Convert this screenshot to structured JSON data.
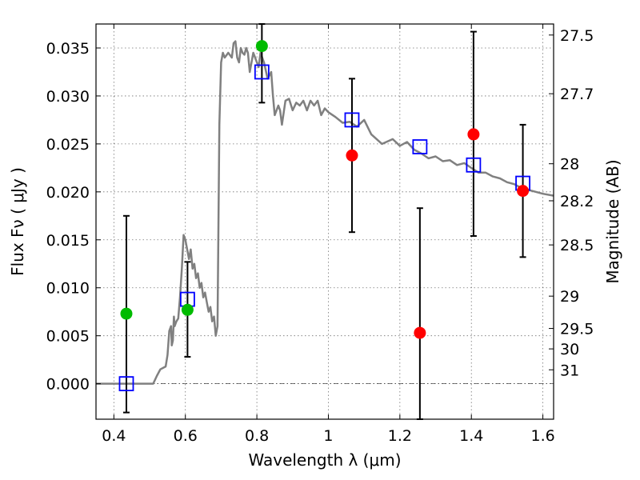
{
  "chart_data": {
    "type": "scatter",
    "xlabel": "Wavelength  λ (μm)",
    "ylabel": "Flux  Fν  ( μJy )",
    "ylabel_right": "Magnitude (AB)",
    "xlim": [
      0.35,
      1.63
    ],
    "ylim": [
      -0.0037,
      0.0375
    ],
    "grid": true,
    "x_ticks": [
      0.4,
      0.6,
      0.8,
      1.0,
      1.2,
      1.4,
      1.6
    ],
    "x_tick_labels": [
      "0.4",
      "0.6",
      "0.8",
      "1",
      "1.2",
      "1.4",
      "1.6"
    ],
    "y_ticks": [
      0.0,
      0.005,
      0.01,
      0.015,
      0.02,
      0.025,
      0.03,
      0.035
    ],
    "y_tick_labels": [
      "0.000",
      "0.005",
      "0.010",
      "0.015",
      "0.020",
      "0.025",
      "0.030",
      "0.035"
    ],
    "right_ticks": [
      {
        "label": "27.5",
        "flux": 0.03635
      },
      {
        "label": "27.7",
        "flux": 0.03023
      },
      {
        "label": "28",
        "flux": 0.02293
      },
      {
        "label": "28.2",
        "flux": 0.01907
      },
      {
        "label": "28.5",
        "flux": 0.01447
      },
      {
        "label": "29",
        "flux": 0.00913
      },
      {
        "label": "29.5",
        "flux": 0.00576
      },
      {
        "label": "30",
        "flux": 0.00363
      },
      {
        "label": "31",
        "flux": 0.00145
      }
    ],
    "series": [
      {
        "kind": "sed-curve",
        "color": "#808080",
        "x": [
          0.35,
          0.51,
          0.52,
          0.53,
          0.545,
          0.55,
          0.555,
          0.56,
          0.562,
          0.565,
          0.568,
          0.57,
          0.575,
          0.58,
          0.585,
          0.59,
          0.595,
          0.6,
          0.605,
          0.61,
          0.615,
          0.62,
          0.625,
          0.63,
          0.635,
          0.64,
          0.645,
          0.65,
          0.655,
          0.66,
          0.665,
          0.67,
          0.675,
          0.68,
          0.685,
          0.69,
          0.695,
          0.7,
          0.705,
          0.71,
          0.72,
          0.73,
          0.735,
          0.74,
          0.745,
          0.75,
          0.755,
          0.76,
          0.765,
          0.77,
          0.775,
          0.78,
          0.785,
          0.79,
          0.795,
          0.8,
          0.805,
          0.81,
          0.82,
          0.83,
          0.84,
          0.845,
          0.85,
          0.86,
          0.865,
          0.87,
          0.88,
          0.89,
          0.9,
          0.91,
          0.92,
          0.93,
          0.94,
          0.95,
          0.96,
          0.97,
          0.98,
          0.99,
          1.0,
          1.02,
          1.04,
          1.06,
          1.08,
          1.1,
          1.12,
          1.15,
          1.18,
          1.2,
          1.22,
          1.24,
          1.26,
          1.28,
          1.3,
          1.32,
          1.34,
          1.36,
          1.38,
          1.4,
          1.42,
          1.44,
          1.46,
          1.48,
          1.5,
          1.52,
          1.54,
          1.56,
          1.58,
          1.6,
          1.63
        ],
        "y": [
          0.0,
          0.0,
          0.0008,
          0.0015,
          0.0018,
          0.003,
          0.0055,
          0.006,
          0.004,
          0.0045,
          0.007,
          0.006,
          0.0065,
          0.0068,
          0.009,
          0.012,
          0.0155,
          0.015,
          0.014,
          0.013,
          0.014,
          0.012,
          0.0125,
          0.011,
          0.0115,
          0.01,
          0.0105,
          0.009,
          0.0095,
          0.0085,
          0.0075,
          0.008,
          0.0065,
          0.007,
          0.005,
          0.006,
          0.027,
          0.0335,
          0.0345,
          0.034,
          0.0345,
          0.034,
          0.0355,
          0.0357,
          0.034,
          0.0335,
          0.035,
          0.0345,
          0.0343,
          0.035,
          0.0345,
          0.0325,
          0.0335,
          0.0345,
          0.034,
          0.0335,
          0.033,
          0.0345,
          0.0335,
          0.0318,
          0.0325,
          0.03,
          0.028,
          0.029,
          0.0285,
          0.027,
          0.0295,
          0.0297,
          0.0285,
          0.0293,
          0.029,
          0.0295,
          0.0285,
          0.0295,
          0.029,
          0.0295,
          0.028,
          0.0287,
          0.0283,
          0.0278,
          0.0272,
          0.0273,
          0.0268,
          0.0275,
          0.026,
          0.025,
          0.0255,
          0.0248,
          0.0252,
          0.0244,
          0.024,
          0.0235,
          0.0237,
          0.0232,
          0.0233,
          0.0228,
          0.023,
          0.0225,
          0.022,
          0.022,
          0.0216,
          0.0214,
          0.021,
          0.0208,
          0.0204,
          0.0202,
          0.02,
          0.0198,
          0.0196
        ]
      },
      {
        "kind": "model-band-flux",
        "color": "#0000ff",
        "marker": "square",
        "x": [
          0.435,
          0.606,
          0.814,
          1.066,
          1.256,
          1.406,
          1.544
        ],
        "y": [
          0.0,
          0.0088,
          0.0325,
          0.0275,
          0.0247,
          0.0228,
          0.0209
        ]
      },
      {
        "kind": "observed-flux",
        "color": "#00bb00",
        "marker": "circle",
        "x": [
          0.435,
          0.606,
          0.814
        ],
        "y": [
          0.0073,
          0.0077,
          0.0352
        ]
      },
      {
        "kind": "observed-flux",
        "color": "#ff0000",
        "marker": "circle",
        "x": [
          1.066,
          1.256,
          1.406,
          1.544
        ],
        "y": [
          0.0238,
          0.0053,
          0.026,
          0.0201
        ]
      }
    ],
    "error_bars": [
      {
        "x": 0.435,
        "low": -0.003,
        "high": 0.0175
      },
      {
        "x": 0.606,
        "low": 0.0028,
        "high": 0.0127
      },
      {
        "x": 0.814,
        "low": 0.0293,
        "high": 0.0375
      },
      {
        "x": 1.066,
        "low": 0.0158,
        "high": 0.0318
      },
      {
        "x": 1.256,
        "low": -0.0037,
        "high": 0.0183
      },
      {
        "x": 1.406,
        "low": 0.0154,
        "high": 0.0367
      },
      {
        "x": 1.544,
        "low": 0.0132,
        "high": 0.027
      }
    ]
  }
}
